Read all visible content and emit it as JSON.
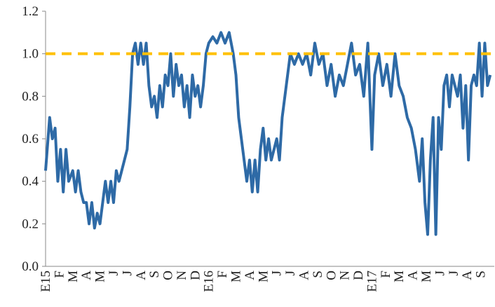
{
  "chart_data": {
    "type": "line",
    "x": [
      0,
      0.3,
      0.5,
      0.7,
      0.9,
      1.1,
      1.3,
      1.5,
      1.7,
      2,
      2.2,
      2.4,
      2.6,
      2.8,
      3,
      3.2,
      3.4,
      3.6,
      3.8,
      4,
      4.2,
      4.4,
      4.6,
      4.8,
      5,
      5.2,
      5.4,
      5.6,
      5.8,
      6,
      6.2,
      6.4,
      6.6,
      6.8,
      7,
      7.2,
      7.4,
      7.6,
      7.8,
      8,
      8.2,
      8.4,
      8.6,
      8.8,
      9,
      9.2,
      9.4,
      9.6,
      9.8,
      10,
      10.2,
      10.4,
      10.6,
      10.8,
      11,
      11.2,
      11.4,
      11.6,
      11.8,
      12,
      12.3,
      12.6,
      12.9,
      13.2,
      13.5,
      13.8,
      14,
      14.2,
      14.4,
      14.6,
      14.8,
      15,
      15.2,
      15.4,
      15.6,
      15.8,
      16,
      16.2,
      16.4,
      16.6,
      16.8,
      17,
      17.2,
      17.4,
      17.6,
      17.8,
      18,
      18.3,
      18.6,
      18.9,
      19.2,
      19.5,
      19.8,
      20.1,
      20.4,
      20.7,
      21,
      21.3,
      21.6,
      21.9,
      22.2,
      22.5,
      22.8,
      23.1,
      23.4,
      23.7,
      24,
      24.2,
      24.5,
      24.8,
      25.1,
      25.4,
      25.7,
      26,
      26.3,
      26.6,
      26.9,
      27.2,
      27.5,
      27.7,
      27.9,
      28.1,
      28.3,
      28.5,
      28.7,
      28.9,
      29.1,
      29.3,
      29.5,
      29.7,
      29.9,
      30.1,
      30.3,
      30.5,
      30.7,
      30.9,
      31.1,
      31.3,
      31.5,
      31.7,
      31.9,
      32.1,
      32.3,
      32.5,
      32.7
    ],
    "series": [
      {
        "color": "#2e6aa6",
        "values": [
          0.45,
          0.7,
          0.6,
          0.65,
          0.4,
          0.55,
          0.35,
          0.55,
          0.4,
          0.45,
          0.35,
          0.45,
          0.35,
          0.3,
          0.3,
          0.2,
          0.3,
          0.18,
          0.25,
          0.2,
          0.3,
          0.4,
          0.3,
          0.4,
          0.3,
          0.45,
          0.4,
          0.45,
          0.5,
          0.55,
          0.75,
          1,
          1.05,
          0.95,
          1.05,
          0.95,
          1.05,
          0.85,
          0.75,
          0.8,
          0.7,
          0.85,
          0.75,
          0.9,
          0.85,
          1,
          0.8,
          0.95,
          0.85,
          0.9,
          0.75,
          0.85,
          0.7,
          0.9,
          0.8,
          0.85,
          0.75,
          0.85,
          1,
          1.05,
          1.08,
          1.05,
          1.1,
          1.05,
          1.1,
          1,
          0.9,
          0.7,
          0.6,
          0.5,
          0.4,
          0.5,
          0.35,
          0.5,
          0.35,
          0.55,
          0.65,
          0.5,
          0.6,
          0.5,
          0.55,
          0.6,
          0.5,
          0.7,
          0.8,
          0.9,
          1,
          0.95,
          1,
          0.95,
          1,
          0.9,
          1.05,
          0.95,
          1,
          0.85,
          0.95,
          0.8,
          0.9,
          0.85,
          0.95,
          1.05,
          0.9,
          0.95,
          0.8,
          1.05,
          0.55,
          0.9,
          1,
          0.85,
          0.95,
          0.8,
          1,
          0.85,
          0.8,
          0.7,
          0.65,
          0.55,
          0.4,
          0.6,
          0.3,
          0.15,
          0.5,
          0.7,
          0.15,
          0.7,
          0.55,
          0.85,
          0.9,
          0.75,
          0.9,
          0.85,
          0.8,
          0.9,
          0.65,
          0.85,
          0.5,
          0.85,
          0.9,
          0.85,
          1.05,
          0.8,
          1.05,
          0.85,
          0.9
        ]
      }
    ],
    "reference_line": {
      "value": 1,
      "color": "#ffc000"
    },
    "xlim": [
      0,
      33
    ],
    "xticks": [
      {
        "value": 0,
        "label": "E15"
      },
      {
        "value": 1,
        "label": "F"
      },
      {
        "value": 2,
        "label": "M"
      },
      {
        "value": 3,
        "label": "A"
      },
      {
        "value": 4,
        "label": "M"
      },
      {
        "value": 5,
        "label": "J"
      },
      {
        "value": 6,
        "label": "J"
      },
      {
        "value": 7,
        "label": "A"
      },
      {
        "value": 8,
        "label": "S"
      },
      {
        "value": 9,
        "label": "O"
      },
      {
        "value": 10,
        "label": "N"
      },
      {
        "value": 11,
        "label": "D"
      },
      {
        "value": 12,
        "label": "E16"
      },
      {
        "value": 13,
        "label": "F"
      },
      {
        "value": 14,
        "label": "M"
      },
      {
        "value": 15,
        "label": "A"
      },
      {
        "value": 16,
        "label": "M"
      },
      {
        "value": 17,
        "label": "J"
      },
      {
        "value": 18,
        "label": "J"
      },
      {
        "value": 19,
        "label": "A"
      },
      {
        "value": 20,
        "label": "S"
      },
      {
        "value": 21,
        "label": "O"
      },
      {
        "value": 22,
        "label": "N"
      },
      {
        "value": 23,
        "label": "D"
      },
      {
        "value": 24,
        "label": "E17"
      },
      {
        "value": 25,
        "label": "F"
      },
      {
        "value": 26,
        "label": "M"
      },
      {
        "value": 27,
        "label": "A"
      },
      {
        "value": 28,
        "label": "M"
      },
      {
        "value": 29,
        "label": "J"
      },
      {
        "value": 30,
        "label": "J"
      },
      {
        "value": 31,
        "label": "A"
      },
      {
        "value": 32,
        "label": "S"
      }
    ],
    "ylim": [
      0,
      1.2
    ],
    "yticks": [
      {
        "value": 0,
        "label": "0.0"
      },
      0.2,
      0.4,
      0.6,
      0.8,
      {
        "value": 1,
        "label": "1.0"
      },
      1.2
    ],
    "grid": false
  }
}
